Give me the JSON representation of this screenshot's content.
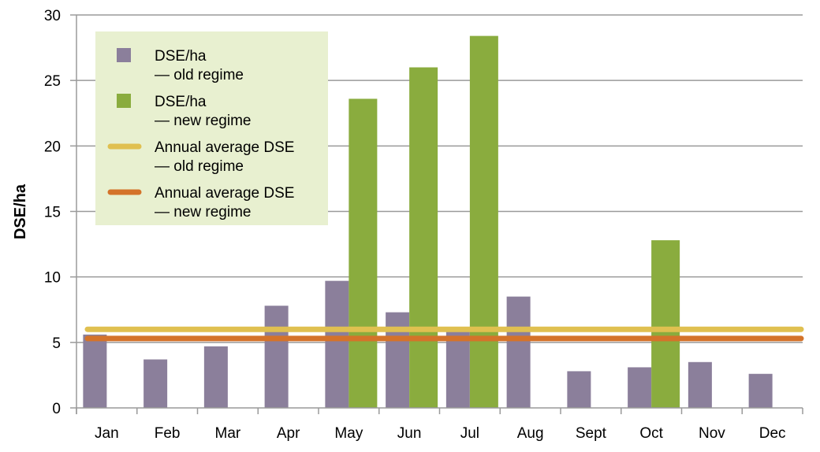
{
  "chart_data": {
    "type": "bar",
    "title": "",
    "xlabel": "",
    "ylabel": "DSE/ha",
    "ylim": [
      0,
      30
    ],
    "yticks": [
      0,
      5,
      10,
      15,
      20,
      25,
      30
    ],
    "grid": true,
    "legend_placement": "top-left",
    "categories": [
      "Jan",
      "Feb",
      "Mar",
      "Apr",
      "May",
      "Jun",
      "Jul",
      "Aug",
      "Sept",
      "Oct",
      "Nov",
      "Dec"
    ],
    "series": [
      {
        "name": "DSE/ha — old regime",
        "legend_lines": [
          "DSE/ha",
          "— old regime"
        ],
        "color": "#8b7f9b",
        "kind": "bar",
        "values": [
          5.6,
          3.7,
          4.7,
          7.8,
          9.7,
          7.3,
          5.8,
          8.5,
          2.8,
          3.1,
          3.5,
          2.6
        ]
      },
      {
        "name": "DSE/ha — new regime",
        "legend_lines": [
          "DSE/ha",
          "— new regime"
        ],
        "color": "#8aac3e",
        "kind": "bar",
        "values": [
          null,
          null,
          null,
          null,
          23.6,
          26.0,
          28.4,
          null,
          null,
          12.8,
          null,
          null
        ]
      },
      {
        "name": "Annual average DSE — old regime",
        "legend_lines": [
          "Annual average DSE",
          "— old regime"
        ],
        "color": "#e0c050",
        "kind": "line",
        "value": 6.0
      },
      {
        "name": "Annual average DSE — new regime",
        "legend_lines": [
          "Annual average DSE",
          "— new regime"
        ],
        "color": "#d4732a",
        "kind": "line",
        "value": 5.3
      }
    ]
  }
}
